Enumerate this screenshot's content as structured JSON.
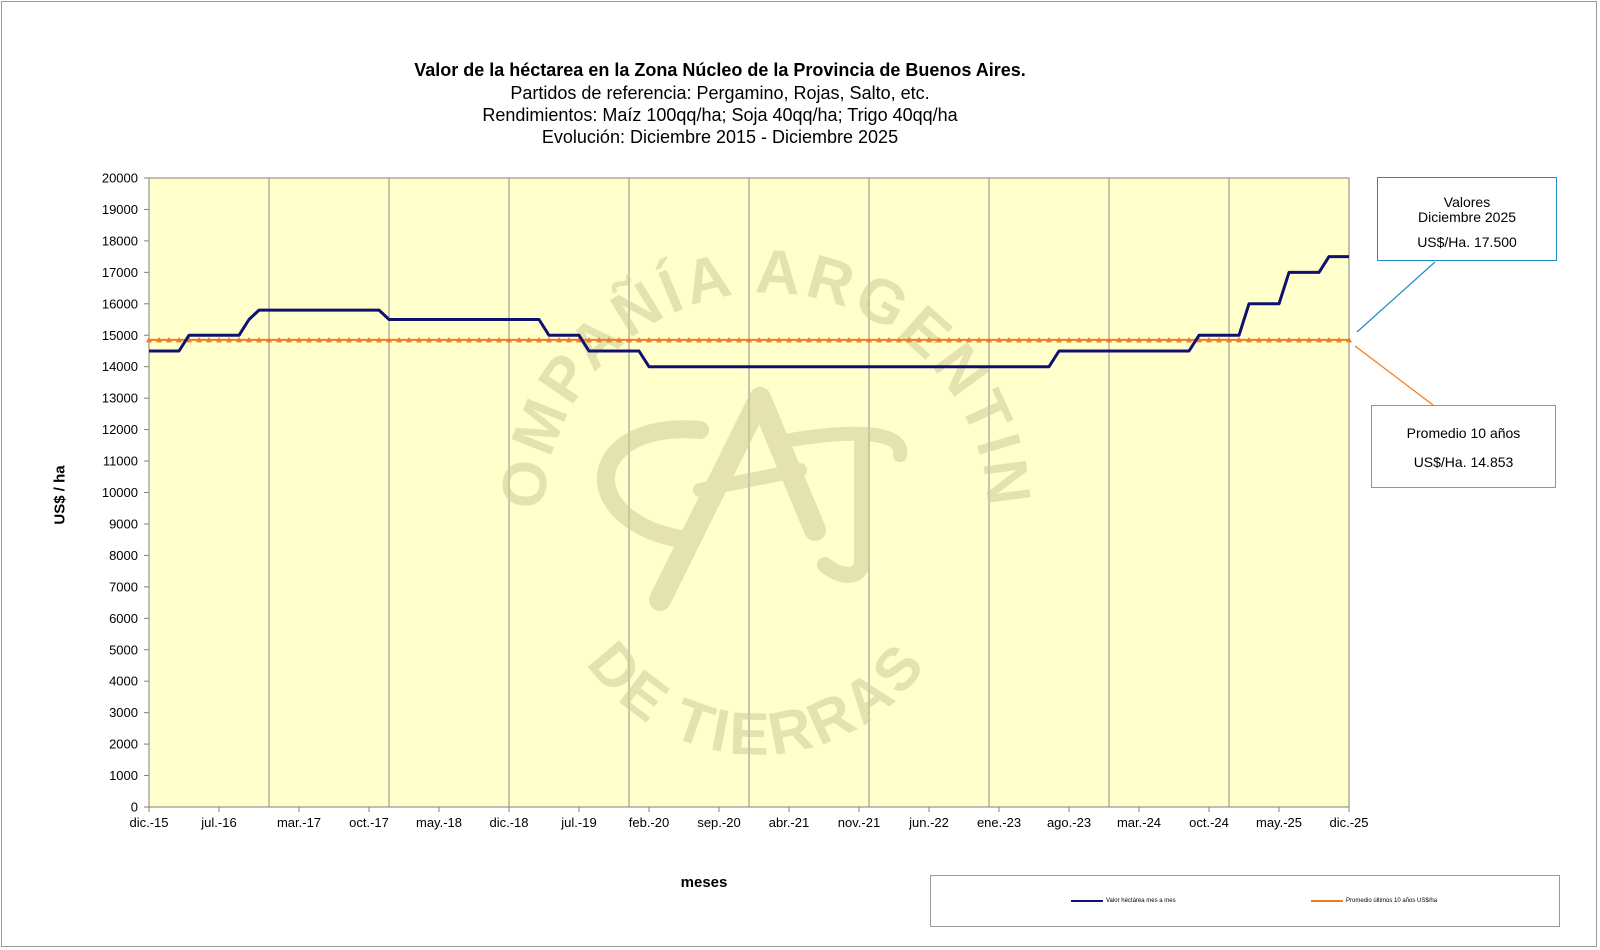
{
  "chart_data": {
    "type": "line",
    "title": "Valor de la héctarea en la Zona Núcleo de la Provincia de Buenos Aires.",
    "subtitles": [
      "Partidos de referencia: Pergamino, Rojas, Salto, etc.",
      "Rendimientos: Maíz 100qq/ha; Soja 40qq/ha; Trigo 40qq/ha",
      "Evolución: Diciembre 2015 - Diciembre 2025"
    ],
    "xlabel": "meses",
    "ylabel": "US$ / ha",
    "ylim": [
      0,
      20000
    ],
    "yticks": [
      0,
      1000,
      2000,
      3000,
      4000,
      5000,
      6000,
      7000,
      8000,
      9000,
      10000,
      11000,
      12000,
      13000,
      14000,
      15000,
      16000,
      17000,
      18000,
      19000,
      20000
    ],
    "xlim": [
      "2015-12",
      "2025-12"
    ],
    "xticks": [
      {
        "date": "2015-12",
        "label": "dic.-15"
      },
      {
        "date": "2016-07",
        "label": "jul.-16"
      },
      {
        "date": "2017-03",
        "label": "mar.-17"
      },
      {
        "date": "2017-10",
        "label": "oct.-17"
      },
      {
        "date": "2018-05",
        "label": "may.-18"
      },
      {
        "date": "2018-12",
        "label": "dic.-18"
      },
      {
        "date": "2019-07",
        "label": "jul.-19"
      },
      {
        "date": "2020-02",
        "label": "feb.-20"
      },
      {
        "date": "2020-09",
        "label": "sep.-20"
      },
      {
        "date": "2021-04",
        "label": "abr.-21"
      },
      {
        "date": "2021-11",
        "label": "nov.-21"
      },
      {
        "date": "2022-06",
        "label": "jun.-22"
      },
      {
        "date": "2023-01",
        "label": "ene.-23"
      },
      {
        "date": "2023-08",
        "label": "ago.-23"
      },
      {
        "date": "2024-03",
        "label": "mar.-24"
      },
      {
        "date": "2024-10",
        "label": "oct.-24"
      },
      {
        "date": "2025-05",
        "label": "may.-25"
      },
      {
        "date": "2025-12",
        "label": "dic.-25"
      }
    ],
    "vgrid_dates": [
      "2015-12",
      "2016-12",
      "2017-12",
      "2018-12",
      "2019-12",
      "2020-12",
      "2021-12",
      "2022-12",
      "2023-12",
      "2024-12",
      "2025-12"
    ],
    "grid": "vertical",
    "legend_position": "bottom-right",
    "series": [
      {
        "name": "Valor héctárea mes a mes",
        "color": "#101070",
        "points": [
          [
            "2015-12",
            14500
          ],
          [
            "2016-03",
            14500
          ],
          [
            "2016-04",
            15000
          ],
          [
            "2016-09",
            15000
          ],
          [
            "2016-10",
            15500
          ],
          [
            "2016-11",
            15800
          ],
          [
            "2017-11",
            15800
          ],
          [
            "2017-12",
            15500
          ],
          [
            "2019-03",
            15500
          ],
          [
            "2019-04",
            15000
          ],
          [
            "2019-07",
            15000
          ],
          [
            "2019-08",
            14500
          ],
          [
            "2020-01",
            14500
          ],
          [
            "2020-02",
            14000
          ],
          [
            "2023-06",
            14000
          ],
          [
            "2023-07",
            14500
          ],
          [
            "2024-08",
            14500
          ],
          [
            "2024-09",
            15000
          ],
          [
            "2025-01",
            15000
          ],
          [
            "2025-02",
            16000
          ],
          [
            "2025-05",
            16000
          ],
          [
            "2025-06",
            17000
          ],
          [
            "2025-09",
            17000
          ],
          [
            "2025-10",
            17500
          ],
          [
            "2025-12",
            17500
          ]
        ]
      },
      {
        "name": "Promedio últimos 10 años US$/ha",
        "color": "#ef7c22",
        "marker": "triangle",
        "constant": 14853
      }
    ],
    "annotations": [
      {
        "lines": [
          "Valores",
          "Diciembre 2025",
          "US$/Ha. 17.500"
        ],
        "color": "#1e8bc3"
      },
      {
        "lines": [
          "Promedio 10 años",
          "US$/Ha. 14.853"
        ],
        "color": "#ef7c22"
      }
    ],
    "plot_background": "#ffffcc",
    "watermark": [
      "COMPAÑÍA ARGENTINA",
      "DE TIERRAS"
    ]
  }
}
